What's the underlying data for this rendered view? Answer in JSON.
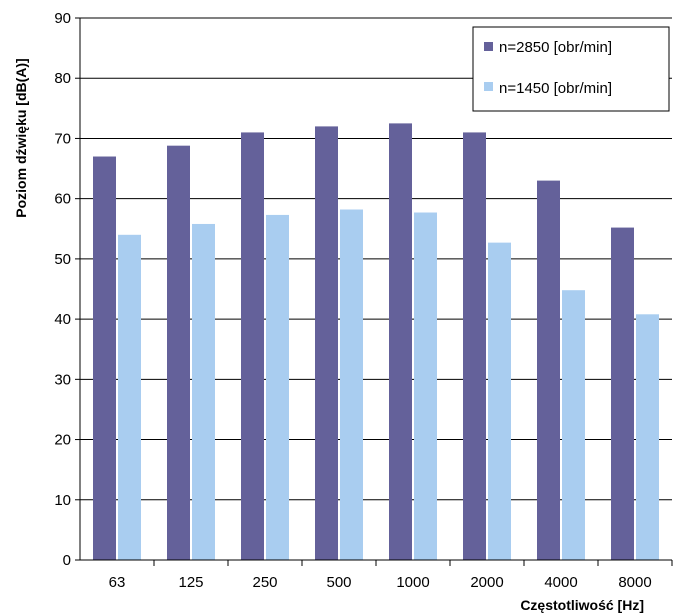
{
  "chart_data": {
    "type": "bar",
    "title": "",
    "xlabel": "Częstotliwość [Hz]",
    "ylabel": "Poziom dźwięku [dB(A)]",
    "ylim": [
      0,
      90
    ],
    "yticks": [
      0,
      10,
      20,
      30,
      40,
      50,
      60,
      70,
      80,
      90
    ],
    "grid": true,
    "legend_position": "top-right",
    "categories": [
      "63",
      "125",
      "250",
      "500",
      "1000",
      "2000",
      "4000",
      "8000"
    ],
    "series": [
      {
        "name": "n=2850 [obr/min]",
        "color": "#64619a",
        "values": [
          67,
          68.8,
          71,
          72,
          72.5,
          71,
          63,
          55.2
        ]
      },
      {
        "name": "n=1450 [obr/min]",
        "color": "#a9cdf0",
        "values": [
          54,
          55.8,
          57.3,
          58.2,
          57.7,
          52.7,
          44.8,
          40.8
        ]
      }
    ]
  }
}
